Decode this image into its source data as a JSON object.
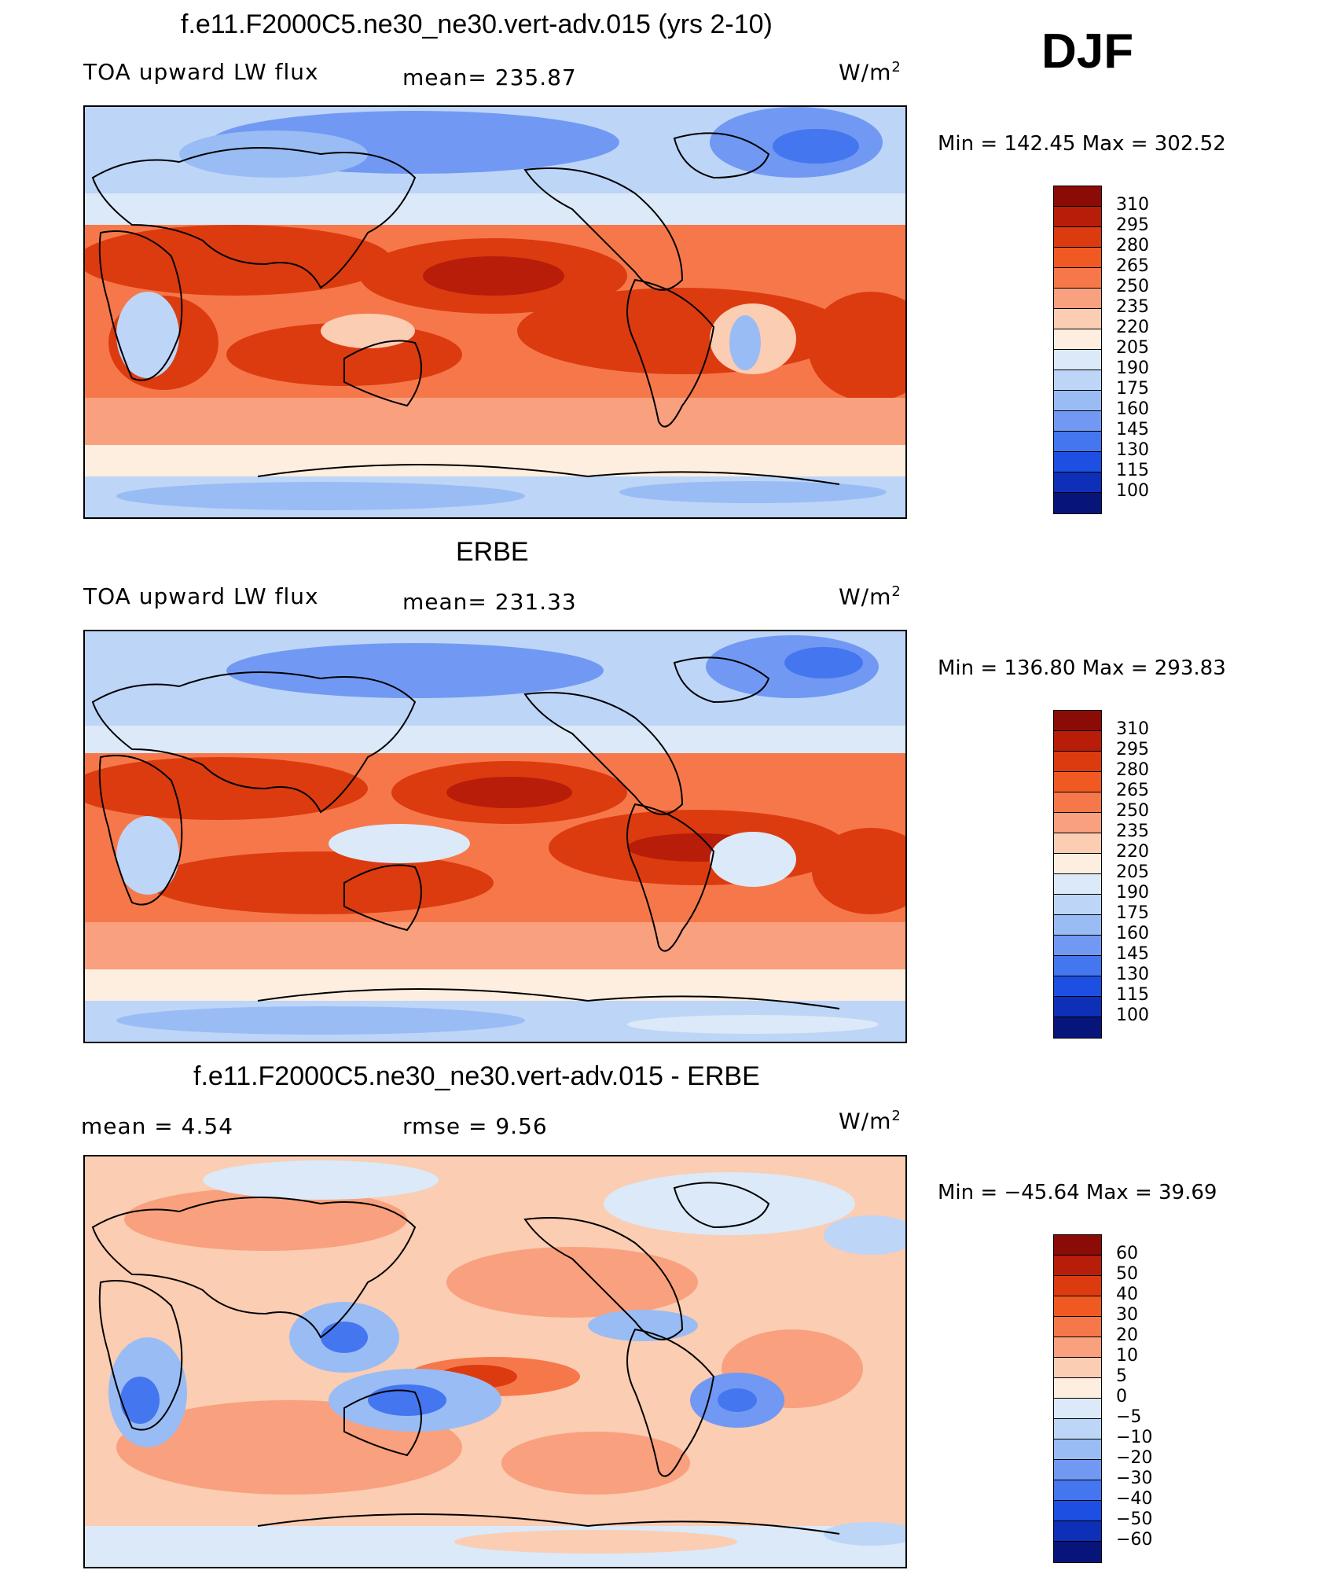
{
  "season": "DJF",
  "panels": [
    {
      "title": "f.e11.F2000C5.ne30_ne30.vert-adv.015 (yrs 2-10)",
      "left_label": "TOA upward LW flux",
      "stat_text": "mean=  235.87",
      "stat2_text": "",
      "units": "W/m",
      "units_sup": "2",
      "minmax": "Min  =  142.45  Max  =  302.52",
      "colorbar": {
        "levels": [
          "310",
          "295",
          "280",
          "265",
          "250",
          "235",
          "220",
          "205",
          "190",
          "175",
          "160",
          "145",
          "130",
          "115",
          "100"
        ],
        "colors": [
          "#8b0b06",
          "#b81d0a",
          "#dc3b10",
          "#f05a22",
          "#f6784a",
          "#f9a07e",
          "#fbcdb3",
          "#fdeee0",
          "#dbe9f8",
          "#bdd5f7",
          "#99bcf5",
          "#7199f3",
          "#4476ef",
          "#1d4fe2",
          "#0e2fb8",
          "#07157a"
        ]
      }
    },
    {
      "title": "ERBE",
      "left_label": "TOA upward LW flux",
      "stat_text": "mean=  231.33",
      "stat2_text": "",
      "units": "W/m",
      "units_sup": "2",
      "minmax": "Min  =  136.80  Max  =  293.83",
      "colorbar": {
        "levels": [
          "310",
          "295",
          "280",
          "265",
          "250",
          "235",
          "220",
          "205",
          "190",
          "175",
          "160",
          "145",
          "130",
          "115",
          "100"
        ],
        "colors": [
          "#8b0b06",
          "#b81d0a",
          "#dc3b10",
          "#f05a22",
          "#f6784a",
          "#f9a07e",
          "#fbcdb3",
          "#fdeee0",
          "#dbe9f8",
          "#bdd5f7",
          "#99bcf5",
          "#7199f3",
          "#4476ef",
          "#1d4fe2",
          "#0e2fb8",
          "#07157a"
        ]
      }
    },
    {
      "title": "f.e11.F2000C5.ne30_ne30.vert-adv.015 - ERBE",
      "left_label": "mean  =     4.54",
      "stat_text": "rmse  =     9.56",
      "stat2_text": "",
      "units": "W/m",
      "units_sup": "2",
      "minmax": "Min  =  −45.64  Max  =    39.69",
      "colorbar": {
        "levels": [
          "60",
          "50",
          "40",
          "30",
          "20",
          "10",
          "5",
          "0",
          "−5",
          "−10",
          "−20",
          "−30",
          "−40",
          "−50",
          "−60"
        ],
        "colors": [
          "#8b0b06",
          "#b81d0a",
          "#dc3b10",
          "#f05a22",
          "#f6784a",
          "#f9a07e",
          "#fbcdb3",
          "#fdeee0",
          "#dbe9f8",
          "#bdd5f7",
          "#99bcf5",
          "#7199f3",
          "#4476ef",
          "#1d4fe2",
          "#0e2fb8",
          "#07157a"
        ]
      }
    }
  ]
}
